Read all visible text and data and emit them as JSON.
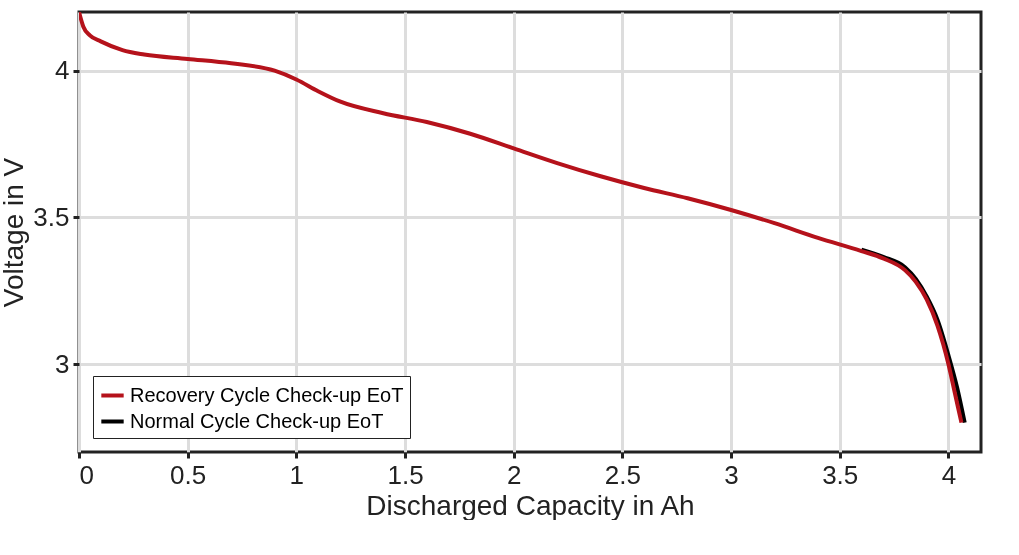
{
  "chart_data": {
    "type": "line",
    "xlabel": "Discharged Capacity in Ah",
    "ylabel": "Voltage in V",
    "xlim": [
      0,
      4.15
    ],
    "ylim": [
      2.7,
      4.2
    ],
    "xticks": [
      0,
      0.5,
      1,
      1.5,
      2,
      2.5,
      3,
      3.5,
      4
    ],
    "yticks": [
      3,
      3.5,
      4
    ],
    "grid": true,
    "legend": "bottom left",
    "line_style": "solid",
    "series": [
      {
        "name": "Recovery Cycle Check-up EoT",
        "color": "#b5121b",
        "x": [
          0,
          0.02,
          0.05,
          0.1,
          0.2,
          0.3,
          0.5,
          0.7,
          0.9,
          1.0,
          1.1,
          1.2,
          1.4,
          1.6,
          1.8,
          2.0,
          2.2,
          2.4,
          2.6,
          2.8,
          3.0,
          3.2,
          3.4,
          3.6,
          3.7,
          3.8,
          3.85,
          3.9,
          3.95,
          4.0,
          4.03,
          4.06
        ],
        "values": [
          4.2,
          4.15,
          4.12,
          4.1,
          4.07,
          4.055,
          4.04,
          4.025,
          4.0,
          3.97,
          3.93,
          3.895,
          3.855,
          3.825,
          3.785,
          3.735,
          3.685,
          3.64,
          3.6,
          3.565,
          3.525,
          3.48,
          3.43,
          3.385,
          3.36,
          3.32,
          3.28,
          3.22,
          3.13,
          3.0,
          2.9,
          2.8
        ]
      },
      {
        "name": "Normal Cycle Check-up EoT",
        "color": "#000000",
        "x": [
          3.6,
          3.7,
          3.8,
          3.85,
          3.9,
          3.95,
          4.0,
          4.04,
          4.075
        ],
        "values": [
          3.39,
          3.365,
          3.33,
          3.29,
          3.23,
          3.15,
          3.03,
          2.92,
          2.8
        ]
      }
    ]
  }
}
